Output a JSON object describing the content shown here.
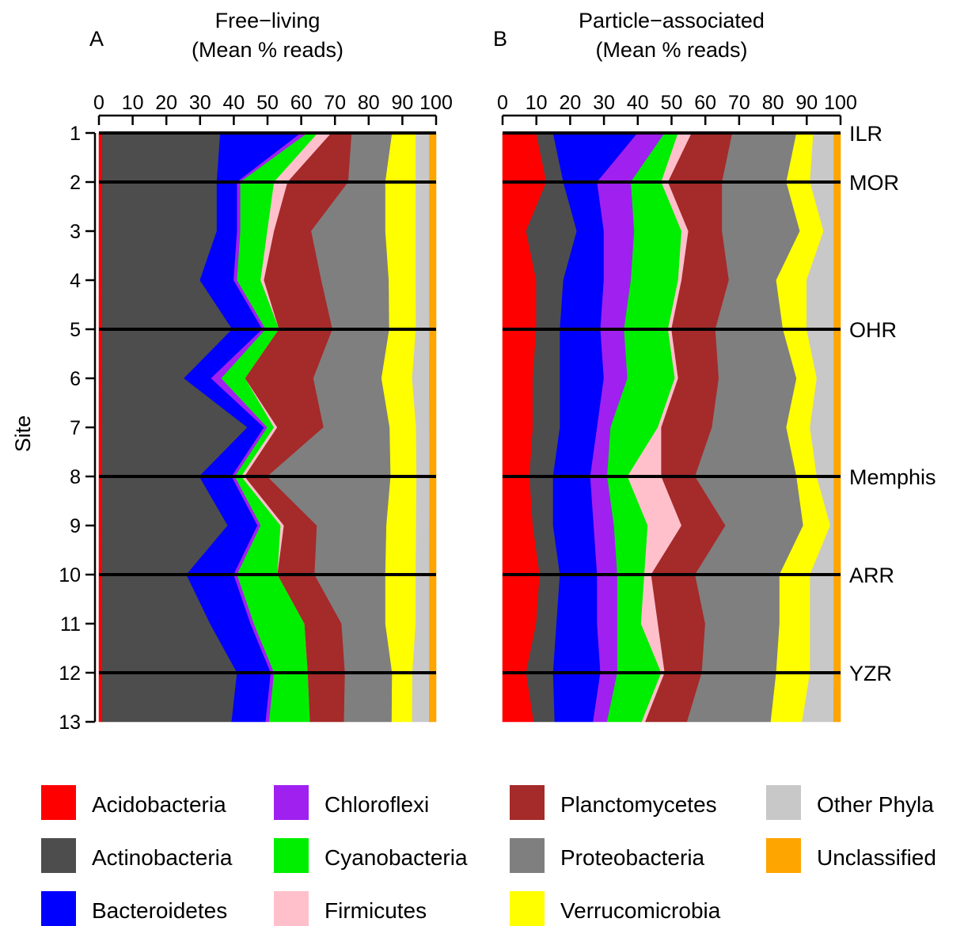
{
  "chart_data": {
    "type": "area",
    "ylabel": "Site",
    "sites": [
      1,
      2,
      3,
      4,
      5,
      6,
      7,
      8,
      9,
      10,
      11,
      12,
      13
    ],
    "xlim": [
      0,
      100
    ],
    "x_ticks": [
      "0",
      "10",
      "20",
      "30",
      "40",
      "50",
      "60",
      "70",
      "80",
      "90",
      "100"
    ],
    "phyla": [
      "Acidobacteria",
      "Actinobacteria",
      "Bacteroidetes",
      "Chloroflexi",
      "Cyanobacteria",
      "Firmicutes",
      "Planctomycetes",
      "Proteobacteria",
      "Verrucomicrobia",
      "Other Phyla",
      "Unclassified"
    ],
    "colors": {
      "Acidobacteria": "#ff0000",
      "Actinobacteria": "#4d4d4d",
      "Bacteroidetes": "#0000ff",
      "Chloroflexi": "#a020f0",
      "Cyanobacteria": "#00ee00",
      "Firmicutes": "#ffc0cb",
      "Planctomycetes": "#a52a2a",
      "Proteobacteria": "#7f7f7f",
      "Verrucomicrobia": "#ffff00",
      "Other Phyla": "#c8c8c8",
      "Unclassified": "#ffa500"
    },
    "site_labels": [
      {
        "site": 1,
        "text": "ILR"
      },
      {
        "site": 2,
        "text": "MOR"
      },
      {
        "site": 5,
        "text": "OHR"
      },
      {
        "site": 8,
        "text": "Memphis"
      },
      {
        "site": 10,
        "text": "ARR"
      },
      {
        "site": 12,
        "text": "YZR"
      }
    ],
    "panels": [
      {
        "letter": "A",
        "title_line1": "Free−living",
        "title_line2": "(Mean % reads)",
        "values": {
          "Acidobacteria": [
            1,
            1,
            1,
            1,
            1,
            1,
            1,
            1,
            1,
            1,
            1,
            1,
            1
          ],
          "Actinobacteria": [
            35,
            34,
            34,
            29,
            39,
            24,
            44,
            30,
            38,
            25,
            32,
            40,
            38
          ],
          "Bacteroidetes": [
            24,
            6,
            6,
            10,
            9,
            8,
            5,
            10,
            9,
            14,
            12,
            10,
            10
          ],
          "Chloroflexi": [
            2,
            1,
            1,
            1,
            1,
            3,
            1,
            1,
            1,
            1,
            1,
            1,
            1
          ],
          "Cyanobacteria": [
            3,
            10,
            8,
            7,
            4,
            7,
            2,
            2,
            6,
            12,
            15,
            10,
            12
          ],
          "Firmicutes": [
            4,
            4,
            2,
            1,
            0,
            0,
            1,
            1,
            1,
            0,
            0,
            0,
            0
          ],
          "Planctomycetes": [
            6,
            18,
            11,
            17,
            16,
            20,
            14,
            7,
            10,
            11,
            11,
            11,
            10
          ],
          "Proteobacteria": [
            12,
            11,
            22,
            20,
            17,
            20,
            20,
            38,
            21,
            21,
            13,
            14,
            14
          ],
          "Verrucomicrobia": [
            7,
            9,
            9,
            8,
            8,
            9,
            8,
            8,
            9,
            9,
            9,
            6,
            6
          ],
          "Other Phyla": [
            4,
            4,
            4,
            4,
            4,
            5,
            4,
            4,
            4,
            4,
            4,
            5,
            5
          ],
          "Unclassified": [
            2,
            2,
            2,
            2,
            2,
            2,
            2,
            2,
            2,
            2,
            2,
            2,
            2
          ]
        }
      },
      {
        "letter": "B",
        "title_line1": "Particle−associated",
        "title_line2": "(Mean % reads)",
        "values": {
          "Acidobacteria": [
            10,
            13,
            7,
            10,
            10,
            9,
            9,
            8,
            9,
            11,
            10,
            7,
            9
          ],
          "Actinobacteria": [
            5,
            5,
            15,
            8,
            7,
            8,
            8,
            7,
            6,
            6,
            6,
            8,
            6
          ],
          "Bacteroidetes": [
            25,
            10,
            8,
            12,
            12,
            13,
            11,
            11,
            12,
            11,
            12,
            14,
            11
          ],
          "Chloroflexi": [
            8,
            10,
            9,
            8,
            7,
            7,
            4,
            5,
            6,
            6,
            6,
            5,
            4
          ],
          "Cyanobacteria": [
            4,
            9,
            14,
            14,
            13,
            14,
            14,
            6,
            10,
            8,
            7,
            13,
            10
          ],
          "Firmicutes": [
            4,
            2,
            2,
            1,
            1,
            1,
            1,
            10,
            10,
            2,
            5,
            1,
            1
          ],
          "Planctomycetes": [
            12,
            16,
            10,
            14,
            13,
            12,
            15,
            10,
            13,
            13,
            14,
            11,
            12
          ],
          "Proteobacteria": [
            19,
            19,
            23,
            14,
            20,
            23,
            22,
            30,
            23,
            25,
            22,
            22,
            24
          ],
          "Verrucomicrobia": [
            5,
            7,
            7,
            9,
            7,
            6,
            7,
            6,
            8,
            9,
            9,
            10,
            9
          ],
          "Other Phyla": [
            6,
            7,
            3,
            8,
            8,
            5,
            7,
            5,
            1,
            7,
            7,
            7,
            9
          ],
          "Unclassified": [
            2,
            2,
            2,
            2,
            2,
            2,
            2,
            2,
            2,
            2,
            2,
            2,
            2
          ]
        }
      }
    ]
  }
}
